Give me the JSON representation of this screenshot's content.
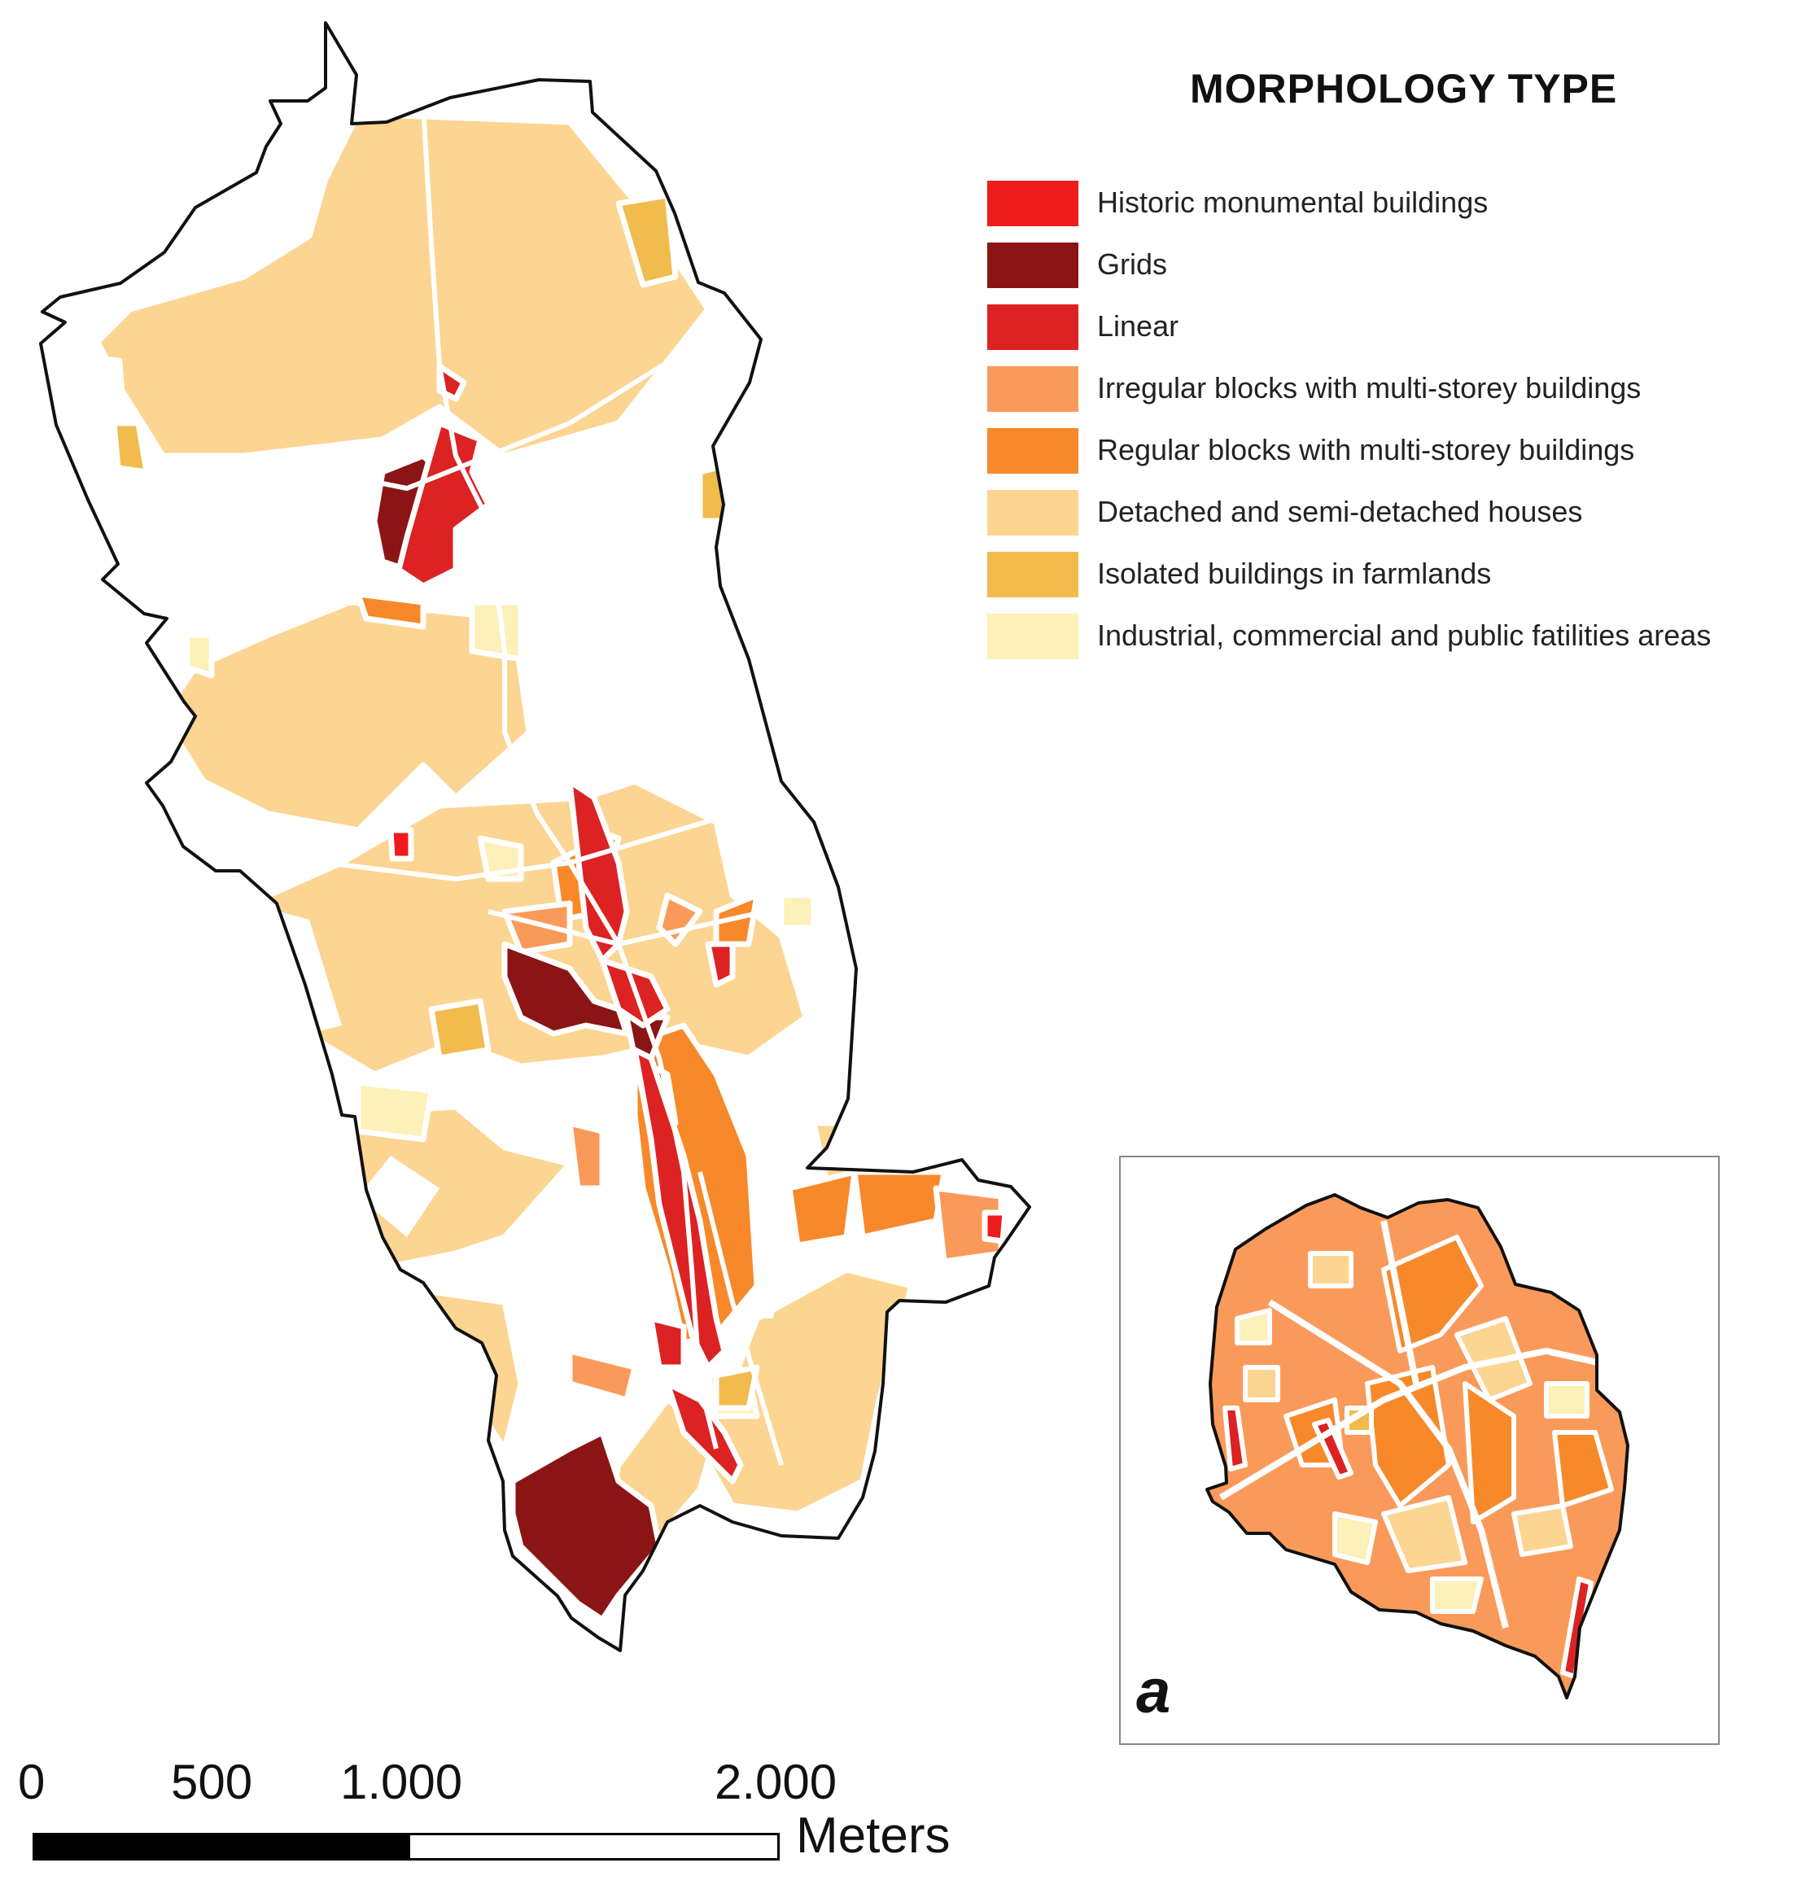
{
  "legend": {
    "title": "MORPHOLOGY TYPE",
    "items": [
      {
        "key": "historic",
        "label": "Historic monumental buildings",
        "color": "#ee1c1c"
      },
      {
        "key": "grids",
        "label": "Grids",
        "color": "#8b1414"
      },
      {
        "key": "linear",
        "label": "Linear",
        "color": "#dc2222"
      },
      {
        "key": "irregular",
        "label": "Irregular blocks with multi-storey buildings",
        "color": "#fa9a5a"
      },
      {
        "key": "regular",
        "label": "Regular blocks with multi-storey buildings",
        "color": "#f7892a"
      },
      {
        "key": "detached",
        "label": "Detached and semi-detached houses",
        "color": "#fcd592"
      },
      {
        "key": "isolated",
        "label": "Isolated buildings in farmlands",
        "color": "#f1bb4d"
      },
      {
        "key": "industrial",
        "label": "Industrial, commercial and public fatilities areas",
        "color": "#fdf0b8"
      }
    ]
  },
  "inset": {
    "label": "a"
  },
  "scale_bar": {
    "ticks": [
      "0",
      "500",
      "1.000",
      "2.000"
    ],
    "unit": "Meters"
  }
}
